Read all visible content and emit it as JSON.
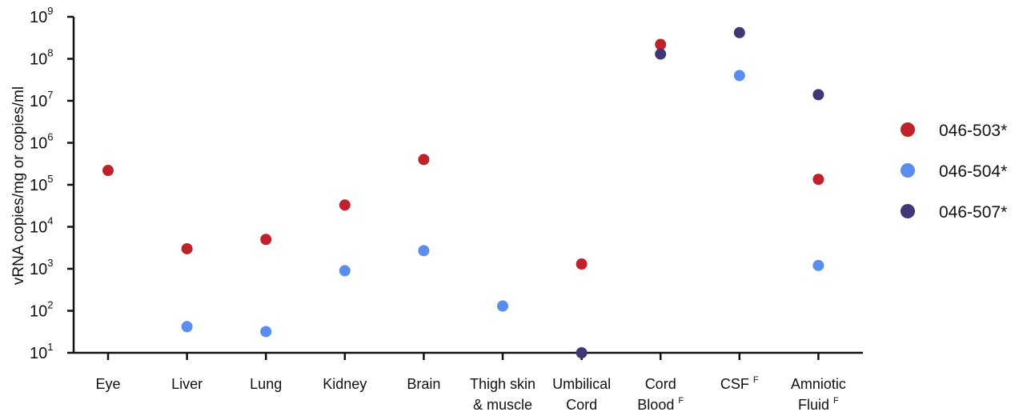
{
  "chart_data": {
    "type": "scatter",
    "ylabel": "vRNA copies/mg or copies/ml",
    "xlabel": "",
    "yscale": "log",
    "ylim": [
      10,
      1000000000
    ],
    "y_ticks": [
      {
        "value": 10,
        "base": "10",
        "exp": "1"
      },
      {
        "value": 100,
        "base": "10",
        "exp": "2"
      },
      {
        "value": 1000,
        "base": "10",
        "exp": "3"
      },
      {
        "value": 10000,
        "base": "10",
        "exp": "4"
      },
      {
        "value": 100000,
        "base": "10",
        "exp": "5"
      },
      {
        "value": 1000000,
        "base": "10",
        "exp": "6"
      },
      {
        "value": 10000000,
        "base": "10",
        "exp": "7"
      },
      {
        "value": 100000000,
        "base": "10",
        "exp": "8"
      },
      {
        "value": 1000000000,
        "base": "10",
        "exp": "9"
      }
    ],
    "categories": [
      {
        "lines": [
          "Eye"
        ],
        "sup": ""
      },
      {
        "lines": [
          "Liver"
        ],
        "sup": ""
      },
      {
        "lines": [
          "Lung"
        ],
        "sup": ""
      },
      {
        "lines": [
          "Kidney"
        ],
        "sup": ""
      },
      {
        "lines": [
          "Brain"
        ],
        "sup": ""
      },
      {
        "lines": [
          "Thigh skin",
          "& muscle"
        ],
        "sup": ""
      },
      {
        "lines": [
          "Umbilical",
          "Cord"
        ],
        "sup": ""
      },
      {
        "lines": [
          "Cord",
          "Blood"
        ],
        "sup": "F"
      },
      {
        "lines": [
          "CSF"
        ],
        "sup": "F"
      },
      {
        "lines": [
          "Amniotic",
          "Fluid"
        ],
        "sup": "F"
      }
    ],
    "legend_position": "right",
    "grid": false,
    "series": [
      {
        "name": "046-503*",
        "color": "#c0222b",
        "values": [
          220000,
          3000,
          5000,
          33000,
          400000,
          null,
          1300,
          220000000,
          null,
          135000
        ]
      },
      {
        "name": "046-504*",
        "color": "#5b8def",
        "values": [
          null,
          42,
          32,
          900,
          2700,
          130,
          null,
          null,
          40000000,
          1200
        ]
      },
      {
        "name": "046-507*",
        "color": "#3f3676",
        "values": [
          null,
          null,
          null,
          null,
          null,
          null,
          10,
          130000000,
          420000000,
          14000000
        ]
      }
    ]
  }
}
